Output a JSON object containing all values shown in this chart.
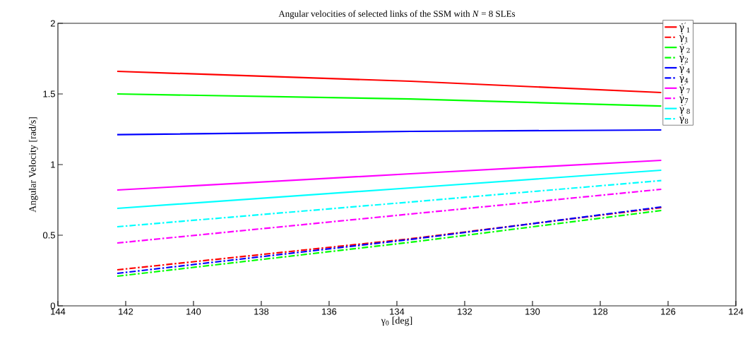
{
  "chart_data": {
    "type": "line",
    "title": "Angular velocities of selected links of the SSM with *N* = 8 SLEs",
    "xlabel": "γ$_{0}$ [deg]",
    "ylabel": "Angular Velocity [rad/s]",
    "x": [
      142.25,
      133.6,
      126.2
    ],
    "xlim": [
      144,
      124
    ],
    "xticks": [
      144,
      142,
      140,
      138,
      136,
      134,
      132,
      130,
      128,
      126,
      124
    ],
    "ylim": [
      0,
      2
    ],
    "yticks": [
      0,
      0.5,
      1,
      1.5,
      2
    ],
    "grid": false,
    "legend": "top right",
    "marker": "none",
    "series": [
      {
        "name": "γ̇$^{′}$$_{1}$",
        "color": "#ff0000",
        "line_style": "solid",
        "values": [
          1.66,
          1.59,
          1.51
        ]
      },
      {
        "name": "γ̇$_{1}$",
        "color": "#ff0000",
        "line_style": "dashed",
        "values": [
          0.255,
          0.475,
          0.695
        ]
      },
      {
        "name": "γ̇$^{′}$$_{2}$",
        "color": "#00ff00",
        "line_style": "solid",
        "values": [
          1.5,
          1.464,
          1.414
        ]
      },
      {
        "name": "γ̇$_{2}$",
        "color": "#00ff00",
        "line_style": "dashed",
        "values": [
          0.21,
          0.45,
          0.675
        ]
      },
      {
        "name": "γ̇$^{′}$$_{4}$",
        "color": "#0000ff",
        "line_style": "solid",
        "values": [
          1.212,
          1.235,
          1.245
        ]
      },
      {
        "name": "γ̇$_{4}$",
        "color": "#0000ff",
        "line_style": "dashed",
        "values": [
          0.23,
          0.47,
          0.7
        ]
      },
      {
        "name": "γ̇$^{′}$$_{7}$",
        "color": "#ff00ff",
        "line_style": "solid",
        "values": [
          0.82,
          0.935,
          1.03
        ]
      },
      {
        "name": "γ̇$_{7}$",
        "color": "#ff00ff",
        "line_style": "dashed",
        "values": [
          0.445,
          0.65,
          0.825
        ]
      },
      {
        "name": "γ̇$^{′}$$_{8}$",
        "color": "#00ffff",
        "line_style": "solid",
        "values": [
          0.69,
          0.835,
          0.96
        ]
      },
      {
        "name": "γ̇$_{8}$",
        "color": "#00ffff",
        "line_style": "dashed",
        "values": [
          0.56,
          0.735,
          0.887
        ]
      }
    ]
  }
}
